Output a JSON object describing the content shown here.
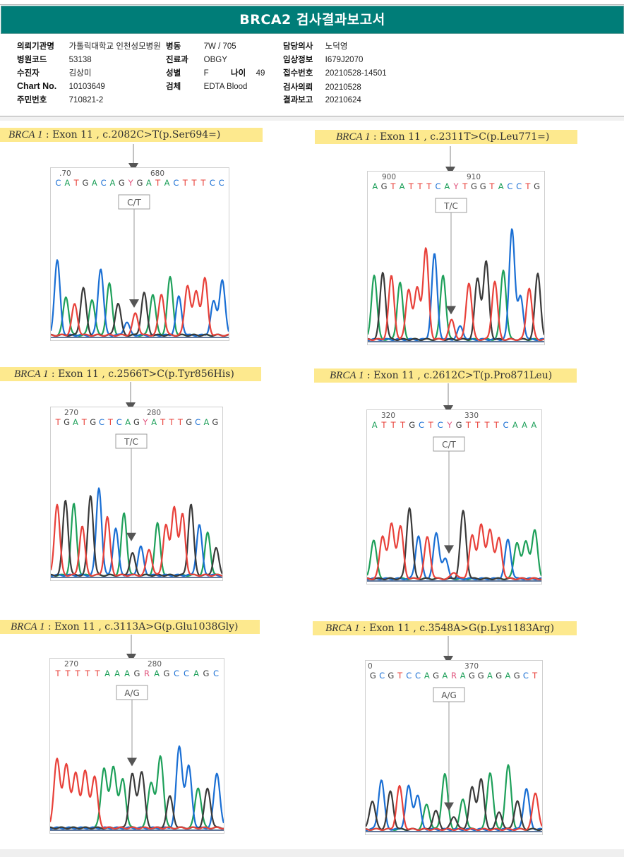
{
  "header": {
    "title": "BRCA2 검사결과보고서"
  },
  "patient_info": {
    "col1": [
      {
        "label": "의뢰기관명",
        "value": "가톨릭대학교 인천성모병원"
      },
      {
        "label": "병원코드",
        "value": "53138"
      },
      {
        "label": "수진자",
        "value": "김상미"
      },
      {
        "label": "Chart No.",
        "value": "10103649"
      },
      {
        "label": "주민번호",
        "value": "710821-2"
      }
    ],
    "col2": [
      {
        "label": "병동",
        "value": "7W / 705"
      },
      {
        "label": "진료과",
        "value": "OBGY"
      },
      {
        "label": "성별",
        "value": "F"
      },
      {
        "label": "검체",
        "value": "EDTA Blood"
      }
    ],
    "age": {
      "label": "나이",
      "value": "49"
    },
    "col3": [
      {
        "label": "담당의사",
        "value": "노덕영"
      },
      {
        "label": "임상정보",
        "value": "I679J2070"
      },
      {
        "label": "접수번호",
        "value": "20210528-14501"
      },
      {
        "label": "검사의뢰",
        "value": "20210528"
      },
      {
        "label": "결과보고",
        "value": "20210624"
      }
    ]
  },
  "colors": {
    "header_bg": "#007d78",
    "caption_bg": "#fde98e",
    "A": "#1ea05a",
    "C": "#1a6fd4",
    "G": "#3a3a3a",
    "T": "#e8413a",
    "ambiguous": "#e0507a"
  },
  "chart_data": [
    {
      "type": "line",
      "title_gene": "BRCA 1",
      "title_rest": " : Exon 11 , c.2082C>T(p.Ser694=)",
      "tick_labels": [
        ".70",
        "680"
      ],
      "sequence": "CATGACAGYGATACTTTCC",
      "call_label": "C/T",
      "peaks": [
        {
          "b": "C",
          "h": 0.58
        },
        {
          "b": "A",
          "h": 0.3
        },
        {
          "b": "T",
          "h": 0.24
        },
        {
          "b": "G",
          "h": 0.37
        },
        {
          "b": "A",
          "h": 0.28
        },
        {
          "b": "C",
          "h": 0.52
        },
        {
          "b": "A",
          "h": 0.4
        },
        {
          "b": "G",
          "h": 0.25
        },
        {
          "b": "C",
          "h": 0.1
        },
        {
          "b": "T",
          "h": 0.17
        },
        {
          "b": "G",
          "h": 0.33
        },
        {
          "b": "A",
          "h": 0.32
        },
        {
          "b": "T",
          "h": 0.32
        },
        {
          "b": "A",
          "h": 0.45
        },
        {
          "b": "C",
          "h": 0.3
        },
        {
          "b": "T",
          "h": 0.39
        },
        {
          "b": "T",
          "h": 0.34
        },
        {
          "b": "T",
          "h": 0.44
        },
        {
          "b": "C",
          "h": 0.26
        },
        {
          "b": "C",
          "h": 0.43
        }
      ],
      "variant_index": 9
    },
    {
      "type": "line",
      "title_gene": "BRCA 1",
      "title_rest": " : Exon 11 , c.2311T>C(p.Leu771=)",
      "tick_labels": [
        "900",
        "910"
      ],
      "sequence": "AGTATTTCAYTGGTACCTG",
      "call_label": "T/C",
      "peaks": [
        {
          "b": "A",
          "h": 0.5
        },
        {
          "b": "G",
          "h": 0.52
        },
        {
          "b": "T",
          "h": 0.49
        },
        {
          "b": "A",
          "h": 0.44
        },
        {
          "b": "T",
          "h": 0.39
        },
        {
          "b": "T",
          "h": 0.4
        },
        {
          "b": "T",
          "h": 0.7
        },
        {
          "b": "C",
          "h": 0.66
        },
        {
          "b": "A",
          "h": 0.5
        },
        {
          "b": "T",
          "h": 0.15
        },
        {
          "b": "C",
          "h": 0.1
        },
        {
          "b": "T",
          "h": 0.44
        },
        {
          "b": "G",
          "h": 0.47
        },
        {
          "b": "G",
          "h": 0.6
        },
        {
          "b": "T",
          "h": 0.45
        },
        {
          "b": "A",
          "h": 0.54
        },
        {
          "b": "C",
          "h": 0.86
        },
        {
          "b": "C",
          "h": 0.33
        },
        {
          "b": "T",
          "h": 0.4
        },
        {
          "b": "G",
          "h": 0.51
        }
      ],
      "variant_index": 9
    },
    {
      "type": "line",
      "title_gene": "BRCA 1",
      "title_rest": " : Exon 11 , c.2566T>C(p.Tyr856His)",
      "tick_labels": [
        "270",
        "280"
      ],
      "sequence": "TGATGCTCAGYATTTGCAG",
      "call_label": "T/C",
      "peaks": [
        {
          "b": "T",
          "h": 0.55
        },
        {
          "b": "G",
          "h": 0.58
        },
        {
          "b": "A",
          "h": 0.55
        },
        {
          "b": "T",
          "h": 0.38
        },
        {
          "b": "G",
          "h": 0.62
        },
        {
          "b": "C",
          "h": 0.68
        },
        {
          "b": "T",
          "h": 0.45
        },
        {
          "b": "C",
          "h": 0.36
        },
        {
          "b": "A",
          "h": 0.48
        },
        {
          "b": "G",
          "h": 0.17
        },
        {
          "b": "C",
          "h": 0.22
        },
        {
          "b": "T",
          "h": 0.2
        },
        {
          "b": "A",
          "h": 0.4
        },
        {
          "b": "T",
          "h": 0.39
        },
        {
          "b": "T",
          "h": 0.53
        },
        {
          "b": "T",
          "h": 0.47
        },
        {
          "b": "G",
          "h": 0.55
        },
        {
          "b": "C",
          "h": 0.39
        },
        {
          "b": "A",
          "h": 0.33
        },
        {
          "b": "G",
          "h": 0.21
        }
      ],
      "variant_index": 10
    },
    {
      "type": "line",
      "title_gene": "BRCA 1",
      "title_rest": " : Exon 11 , c.2612C>T(p.Pro871Leu)",
      "tick_labels": [
        "320",
        "330"
      ],
      "sequence": "ATTTGCTCYGTTTTCAAA",
      "call_label": "C/T",
      "peaks": [
        {
          "b": "A",
          "h": 0.3
        },
        {
          "b": "T",
          "h": 0.33
        },
        {
          "b": "T",
          "h": 0.42
        },
        {
          "b": "T",
          "h": 0.4
        },
        {
          "b": "G",
          "h": 0.55
        },
        {
          "b": "C",
          "h": 0.33
        },
        {
          "b": "T",
          "h": 0.32
        },
        {
          "b": "C",
          "h": 0.35
        },
        {
          "b": "C",
          "h": 0.15
        },
        {
          "b": "T",
          "h": 0.05
        },
        {
          "b": "G",
          "h": 0.52
        },
        {
          "b": "T",
          "h": 0.33
        },
        {
          "b": "T",
          "h": 0.42
        },
        {
          "b": "T",
          "h": 0.38
        },
        {
          "b": "T",
          "h": 0.31
        },
        {
          "b": "C",
          "h": 0.3
        },
        {
          "b": "A",
          "h": 0.28
        },
        {
          "b": "A",
          "h": 0.29
        },
        {
          "b": "A",
          "h": 0.37
        }
      ],
      "variant_index": 8
    },
    {
      "type": "line",
      "title_gene": "BRCA 1",
      "title_rest": " : Exon 11 , c.3113A>G(p.Glu1038Gly)",
      "tick_labels": [
        "270",
        "280"
      ],
      "sequence": "TTTTTAAAGRAGCCAGC",
      "call_label": "A/G",
      "peaks": [
        {
          "b": "T",
          "h": 0.53
        },
        {
          "b": "T",
          "h": 0.49
        },
        {
          "b": "T",
          "h": 0.42
        },
        {
          "b": "T",
          "h": 0.43
        },
        {
          "b": "T",
          "h": 0.39
        },
        {
          "b": "A",
          "h": 0.46
        },
        {
          "b": "A",
          "h": 0.47
        },
        {
          "b": "A",
          "h": 0.37
        },
        {
          "b": "G",
          "h": 0.41
        },
        {
          "b": "G",
          "h": 0.43
        },
        {
          "b": "A",
          "h": 0.35
        },
        {
          "b": "A",
          "h": 0.55
        },
        {
          "b": "G",
          "h": 0.24
        },
        {
          "b": "C",
          "h": 0.62
        },
        {
          "b": "C",
          "h": 0.47
        },
        {
          "b": "A",
          "h": 0.31
        },
        {
          "b": "G",
          "h": 0.3
        },
        {
          "b": "C",
          "h": 0.42
        }
      ],
      "variant_index": 9
    },
    {
      "type": "line",
      "title_gene": "BRCA 1",
      "title_rest": " : Exon 11 , c.3548A>G(p.Lys1183Arg)",
      "tick_labels": [
        "0",
        "370"
      ],
      "sequence": "GCGTCCAGARAGGAGAGCT",
      "call_label": "A/G",
      "peaks": [
        {
          "b": "G",
          "h": 0.22
        },
        {
          "b": "C",
          "h": 0.38
        },
        {
          "b": "G",
          "h": 0.29
        },
        {
          "b": "T",
          "h": 0.33
        },
        {
          "b": "C",
          "h": 0.33
        },
        {
          "b": "C",
          "h": 0.26
        },
        {
          "b": "A",
          "h": 0.19
        },
        {
          "b": "G",
          "h": 0.14
        },
        {
          "b": "A",
          "h": 0.43
        },
        {
          "b": "G",
          "h": 0.1
        },
        {
          "b": "A",
          "h": 0.23
        },
        {
          "b": "G",
          "h": 0.32
        },
        {
          "b": "G",
          "h": 0.39
        },
        {
          "b": "A",
          "h": 0.44
        },
        {
          "b": "G",
          "h": 0.13
        },
        {
          "b": "A",
          "h": 0.49
        },
        {
          "b": "G",
          "h": 0.22
        },
        {
          "b": "C",
          "h": 0.31
        },
        {
          "b": "T",
          "h": 0.28
        }
      ],
      "variant_index": 9
    }
  ]
}
